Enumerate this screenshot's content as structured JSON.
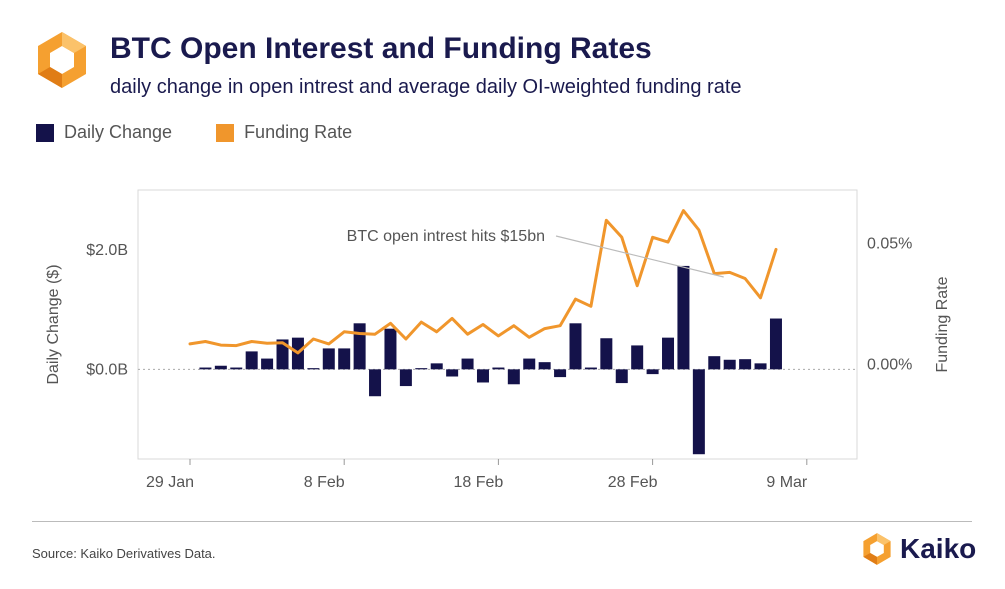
{
  "header": {
    "title": "BTC Open Interest and Funding Rates",
    "subtitle": "daily change in open intrest and average daily OI-weighted funding rate"
  },
  "legend": {
    "daily_change": "Daily Change",
    "funding_rate": "Funding Rate"
  },
  "colors": {
    "bar": "#14124a",
    "line": "#f0962c",
    "title": "#1a1a4e"
  },
  "footer": {
    "source": "Source: Kaiko Derivatives Data.",
    "brand": "Kaiko"
  },
  "chart_data": {
    "type": "bar+line",
    "title": "BTC Open Interest and Funding Rates",
    "x_tick_labels": [
      "29 Jan",
      "8 Feb",
      "18 Feb",
      "28 Feb",
      "9 Mar"
    ],
    "x_tick_index": [
      0,
      10,
      20,
      30,
      40
    ],
    "y_left": {
      "label": "Daily Change ($)",
      "ticks": [
        0,
        2
      ],
      "tick_labels": [
        "$0.0B",
        "$2.0B"
      ],
      "range": [
        -1.5,
        3.0
      ]
    },
    "y_right": {
      "label": "Funding Rate",
      "ticks": [
        0,
        0.05
      ],
      "tick_labels": [
        "0.00%",
        "0.05%"
      ],
      "range": [
        -0.039,
        0.072
      ]
    },
    "annotation": {
      "text": "BTC open intrest hits $15bn",
      "points_to_index": 35
    },
    "series": [
      {
        "name": "Daily Change",
        "kind": "bar",
        "unit": "$B",
        "start_index": 1,
        "values": [
          0.03,
          0.06,
          0.03,
          0.3,
          0.18,
          0.5,
          0.53,
          0.02,
          0.35,
          0.35,
          0.77,
          -0.45,
          0.68,
          -0.28,
          0.02,
          0.1,
          -0.12,
          0.18,
          -0.22,
          0.03,
          -0.25,
          0.18,
          0.12,
          -0.13,
          0.77,
          0.03,
          0.52,
          -0.23,
          0.4,
          -0.08,
          0.53,
          1.73,
          -1.42,
          0.22,
          0.16,
          0.17,
          0.1,
          0.85
        ]
      },
      {
        "name": "Funding Rate",
        "kind": "line",
        "unit": "%",
        "start_index": 0,
        "values": [
          0.0085,
          0.0095,
          0.008,
          0.0078,
          0.0095,
          0.0088,
          0.009,
          0.0048,
          0.0105,
          0.0085,
          0.0135,
          0.0128,
          0.0125,
          0.017,
          0.0105,
          0.0175,
          0.0135,
          0.019,
          0.0125,
          0.0165,
          0.0118,
          0.016,
          0.0112,
          0.0148,
          0.016,
          0.027,
          0.024,
          0.0595,
          0.0525,
          0.0325,
          0.0525,
          0.0505,
          0.0635,
          0.0555,
          0.0375,
          0.038,
          0.0355,
          0.0275,
          0.0475
        ]
      }
    ]
  }
}
